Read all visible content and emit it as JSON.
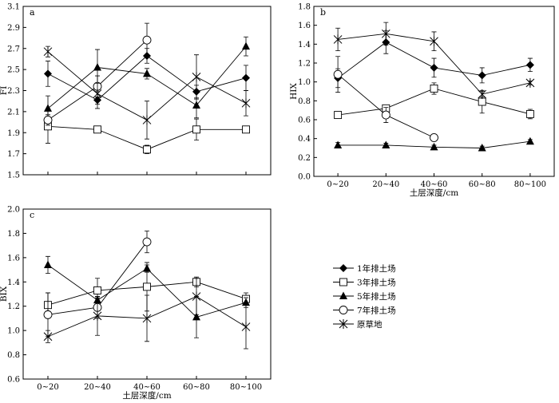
{
  "legend": [
    {
      "name": "1年排土场",
      "marker": "diamond-filled"
    },
    {
      "name": "3年排土场",
      "marker": "square-open"
    },
    {
      "name": "5年排土场",
      "marker": "triangle-filled"
    },
    {
      "name": "7年排土场",
      "marker": "circle-open"
    },
    {
      "name": "原草地",
      "marker": "asterisk"
    }
  ],
  "chart_data": [
    {
      "panel": "a",
      "type": "line",
      "ylabel": "FI",
      "xlabel": "",
      "categories": [
        "0~20",
        "20~40",
        "40~60",
        "60~80",
        "80~100"
      ],
      "ylim": [
        1.5,
        3.1
      ],
      "yticks": [
        "1.5",
        "1.7",
        "1.9",
        "2.1",
        "2.3",
        "2.5",
        "2.7",
        "2.9",
        "3.1"
      ],
      "grid": false,
      "series": [
        {
          "name": "1年排土场",
          "values": [
            2.46,
            2.21,
            2.63,
            2.29,
            2.42
          ],
          "errors": [
            0.12,
            0.08,
            0.07,
            0.06,
            0.12
          ]
        },
        {
          "name": "3年排土场",
          "values": [
            1.96,
            1.93,
            1.74,
            1.93,
            1.93
          ],
          "errors": [
            0.16,
            0.02,
            0.04,
            0.1,
            0.02
          ]
        },
        {
          "name": "5年排土场",
          "values": [
            2.13,
            2.52,
            2.46,
            2.16,
            2.72
          ],
          "errors": [
            0.12,
            0.17,
            0.05,
            0.12,
            0.09
          ]
        },
        {
          "name": "7年排土场",
          "values": [
            2.02,
            2.34,
            2.78,
            null,
            null
          ],
          "errors": [
            0.05,
            0.1,
            0.16,
            null,
            null
          ]
        },
        {
          "name": "原草地",
          "values": [
            2.67,
            2.27,
            2.02,
            2.43,
            2.18
          ],
          "errors": [
            0.05,
            0.1,
            0.18,
            0.21,
            0.12
          ]
        }
      ]
    },
    {
      "panel": "b",
      "type": "line",
      "ylabel": "HIX",
      "xlabel": "土层深度/cm",
      "categories": [
        "0~20",
        "20~40",
        "40~60",
        "60~80",
        "80~100"
      ],
      "ylim": [
        0.0,
        1.8
      ],
      "yticks": [
        "0.0",
        "0.2",
        "0.4",
        "0.6",
        "0.8",
        "1.0",
        "1.2",
        "1.4",
        "1.6",
        "1.8"
      ],
      "grid": false,
      "series": [
        {
          "name": "1年排土场",
          "values": [
            1.04,
            1.42,
            1.15,
            1.07,
            1.18
          ],
          "errors": [
            0.1,
            0.12,
            0.1,
            0.08,
            0.07
          ]
        },
        {
          "name": "3年排土场",
          "values": [
            0.65,
            0.72,
            0.93,
            0.79,
            0.66
          ],
          "errors": [
            0.03,
            0.03,
            0.06,
            0.12,
            0.05
          ]
        },
        {
          "name": "5年排土场",
          "values": [
            0.33,
            0.33,
            0.31,
            0.3,
            0.37
          ],
          "errors": [
            0.03,
            0.02,
            0.02,
            0.02,
            0.02
          ]
        },
        {
          "name": "7年排土场",
          "values": [
            1.08,
            0.65,
            0.41,
            null,
            null
          ],
          "errors": [
            0.19,
            0.08,
            0.02,
            null,
            null
          ]
        },
        {
          "name": "原草地",
          "values": [
            1.45,
            1.51,
            1.43,
            0.87,
            0.99
          ],
          "errors": [
            0.12,
            0.12,
            0.1,
            0.03,
            0.02
          ]
        }
      ]
    },
    {
      "panel": "c",
      "type": "line",
      "ylabel": "BIX",
      "xlabel": "土层深度/cm",
      "categories": [
        "0~20",
        "20~40",
        "40~60",
        "60~80",
        "80~100"
      ],
      "ylim": [
        0.6,
        2.0
      ],
      "yticks": [
        "0.6",
        "0.8",
        "1.0",
        "1.2",
        "1.4",
        "1.6",
        "1.8",
        "2.0"
      ],
      "grid": false,
      "series": [
        {
          "name": "1年排土场",
          "values": [
            null,
            null,
            null,
            null,
            null
          ],
          "errors": [
            null,
            null,
            null,
            null,
            null
          ]
        },
        {
          "name": "3年排土场",
          "values": [
            1.21,
            1.33,
            1.36,
            1.4,
            1.26
          ],
          "errors": [
            0.1,
            0.1,
            0.2,
            0.04,
            0.05
          ]
        },
        {
          "name": "5年排土场",
          "values": [
            1.54,
            1.25,
            1.51,
            1.11,
            1.23
          ],
          "errors": [
            0.07,
            0.02,
            0.03,
            0.17,
            0.04
          ]
        },
        {
          "name": "7年排土场",
          "values": [
            1.13,
            1.19,
            1.73,
            null,
            null
          ],
          "errors": [
            0.18,
            0.09,
            0.09,
            null,
            null
          ]
        },
        {
          "name": "原草地",
          "values": [
            0.95,
            1.12,
            1.1,
            1.28,
            1.03
          ],
          "errors": [
            0.05,
            0.16,
            0.19,
            0.15,
            0.18
          ]
        }
      ]
    }
  ]
}
